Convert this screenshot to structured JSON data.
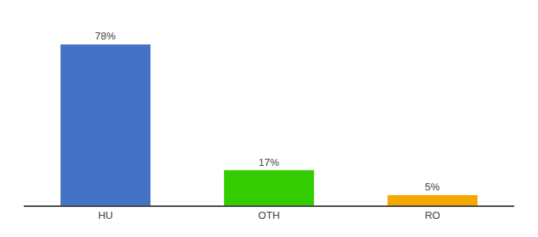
{
  "chart_data": {
    "type": "bar",
    "categories": [
      "HU",
      "OTH",
      "RO"
    ],
    "values": [
      78,
      17,
      5
    ],
    "value_labels": [
      "78%",
      "17%",
      "5%"
    ],
    "data_labels": true,
    "colors": [
      "#4472c4",
      "#33cc00",
      "#f5a800"
    ],
    "ylim": [
      0,
      88
    ],
    "grid": false,
    "tick_labels": "x"
  }
}
